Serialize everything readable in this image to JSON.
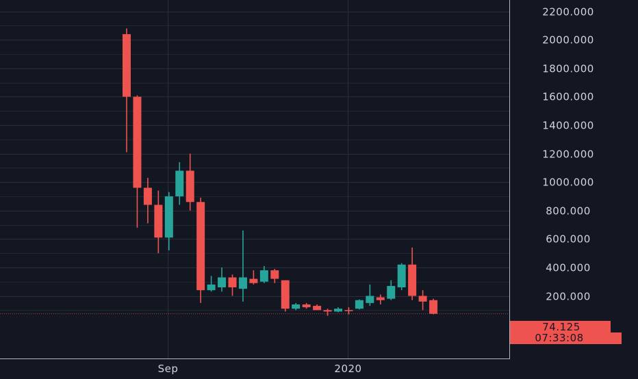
{
  "chart_data": {
    "type": "candlestick",
    "title": "",
    "xlabel": "",
    "ylabel": "",
    "ylim": [
      -240,
      2280
    ],
    "y_ticks": [
      200,
      400,
      600,
      800,
      1000,
      1200,
      1400,
      1600,
      1800,
      2000,
      2200
    ],
    "y_tick_labels": [
      "200.000",
      "400.000",
      "600.000",
      "800.000",
      "1000.000",
      "1200.000",
      "1400.000",
      "1600.000",
      "1800.000",
      "2000.000",
      "2200.000"
    ],
    "x_ticks": [
      {
        "label": "Sep",
        "index": 3.9
      },
      {
        "label": "2020",
        "index": 20.9
      }
    ],
    "grid": true,
    "colors": {
      "background": "#131722",
      "grid": "#2a2e39",
      "axis_text": "#d1d4dc",
      "up": "#26a69a",
      "down": "#ef5350",
      "price_tag": "#ef5350",
      "price_tag_text": "#131722"
    },
    "last_price": 74.125,
    "last_price_label": "74.125",
    "countdown_label": "07:33:08",
    "candles": [
      {
        "o": 2040,
        "h": 2080,
        "l": 1210,
        "c": 1600
      },
      {
        "o": 1600,
        "h": 1610,
        "l": 680,
        "c": 960
      },
      {
        "o": 960,
        "h": 1030,
        "l": 710,
        "c": 840
      },
      {
        "o": 840,
        "h": 940,
        "l": 500,
        "c": 610
      },
      {
        "o": 610,
        "h": 930,
        "l": 520,
        "c": 900
      },
      {
        "o": 900,
        "h": 1140,
        "l": 840,
        "c": 1080
      },
      {
        "o": 1080,
        "h": 1200,
        "l": 800,
        "c": 860
      },
      {
        "o": 860,
        "h": 890,
        "l": 150,
        "c": 240
      },
      {
        "o": 240,
        "h": 340,
        "l": 230,
        "c": 280
      },
      {
        "o": 260,
        "h": 400,
        "l": 230,
        "c": 330
      },
      {
        "o": 330,
        "h": 350,
        "l": 200,
        "c": 260
      },
      {
        "o": 250,
        "h": 660,
        "l": 160,
        "c": 330
      },
      {
        "o": 320,
        "h": 380,
        "l": 280,
        "c": 290
      },
      {
        "o": 300,
        "h": 410,
        "l": 290,
        "c": 380
      },
      {
        "o": 380,
        "h": 390,
        "l": 290,
        "c": 320
      },
      {
        "o": 310,
        "h": 310,
        "l": 90,
        "c": 110
      },
      {
        "o": 110,
        "h": 150,
        "l": 100,
        "c": 140
      },
      {
        "o": 140,
        "h": 150,
        "l": 110,
        "c": 120
      },
      {
        "o": 130,
        "h": 140,
        "l": 100,
        "c": 100
      },
      {
        "o": 100,
        "h": 110,
        "l": 60,
        "c": 90
      },
      {
        "o": 90,
        "h": 120,
        "l": 85,
        "c": 110
      },
      {
        "o": 100,
        "h": 120,
        "l": 70,
        "c": 95
      },
      {
        "o": 110,
        "h": 175,
        "l": 105,
        "c": 170
      },
      {
        "o": 150,
        "h": 280,
        "l": 130,
        "c": 200
      },
      {
        "o": 190,
        "h": 210,
        "l": 140,
        "c": 170
      },
      {
        "o": 180,
        "h": 310,
        "l": 170,
        "c": 270
      },
      {
        "o": 260,
        "h": 430,
        "l": 240,
        "c": 420
      },
      {
        "o": 420,
        "h": 540,
        "l": 170,
        "c": 200
      },
      {
        "o": 200,
        "h": 240,
        "l": 100,
        "c": 160
      },
      {
        "o": 170,
        "h": 180,
        "l": 70,
        "c": 74.125
      }
    ]
  }
}
